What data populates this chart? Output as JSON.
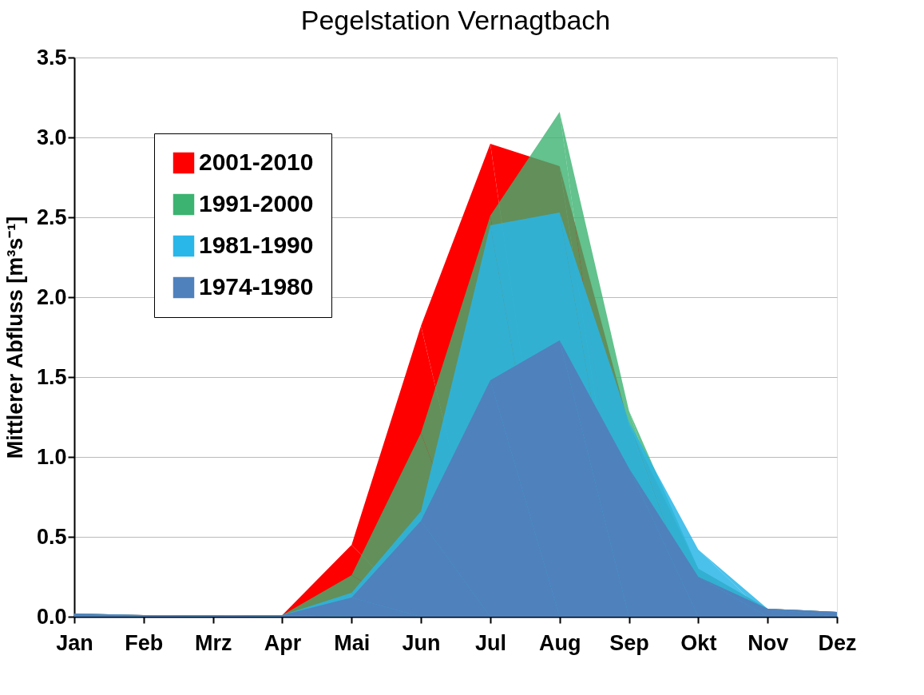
{
  "chart_data": {
    "type": "area",
    "title": "Pegelstation Vernagtbach",
    "ylabel": "Mittlerer Abfluss [m³s⁻¹]",
    "categories": [
      "Jan",
      "Feb",
      "Mrz",
      "Apr",
      "Mai",
      "Jun",
      "Jul",
      "Aug",
      "Sep",
      "Okt",
      "Nov",
      "Dez"
    ],
    "series": [
      {
        "name": "2001-2010",
        "color": "#ff0000",
        "values": [
          0.02,
          0.01,
          0.01,
          0.01,
          0.45,
          1.82,
          2.96,
          2.82,
          1.2,
          0.3,
          0.05,
          0.03
        ]
      },
      {
        "name": "1991-2000",
        "color": "#3cb371",
        "values": [
          0.02,
          0.01,
          0.01,
          0.01,
          0.26,
          1.15,
          2.51,
          3.16,
          1.29,
          0.3,
          0.05,
          0.03
        ]
      },
      {
        "name": "1981-1990",
        "color": "#29b6e8",
        "values": [
          0.02,
          0.01,
          0.01,
          0.01,
          0.15,
          0.66,
          2.45,
          2.53,
          1.22,
          0.42,
          0.05,
          0.03
        ]
      },
      {
        "name": "1974-1980",
        "color": "#4f81bd",
        "values": [
          0.02,
          0.01,
          0.01,
          0.01,
          0.12,
          0.6,
          1.48,
          1.73,
          0.93,
          0.25,
          0.05,
          0.03
        ]
      }
    ],
    "ylim": [
      0,
      3.5
    ],
    "yticks": [
      {
        "value": 0,
        "label": "0.0"
      },
      {
        "value": 0.5,
        "label": "0.5"
      },
      {
        "value": 1,
        "label": "1.0"
      },
      {
        "value": 1.5,
        "label": "1.5"
      },
      {
        "value": 2,
        "label": "2.0"
      },
      {
        "value": 2.5,
        "label": "2.5"
      },
      {
        "value": 3,
        "label": "3.0"
      },
      {
        "value": 3.5,
        "label": "3.5"
      }
    ],
    "grid": "y",
    "legend": "top left"
  }
}
